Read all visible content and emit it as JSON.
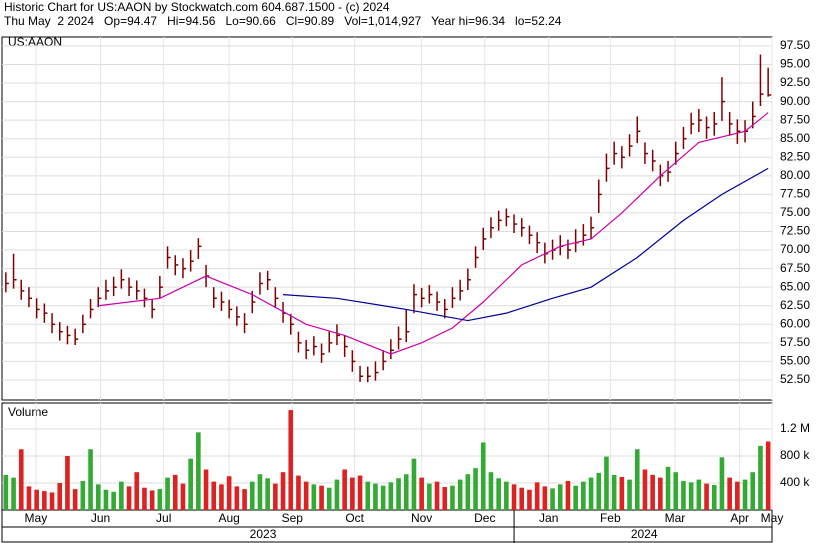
{
  "chart_data": {
    "type": "hlc",
    "title": "Historic Chart for US:AAON by Stockwatch.com 604.687.1500 - (c) 2024",
    "subtitle": "Thu May  2 2024   Op=94.47   Hi=94.56   Lo=90.66   Cl=90.89   Vol=1,014,927   Year hi=96.34   lo=52.24",
    "symbol": "US:AAON",
    "volume_label": "Volume",
    "bar_color": "#800000",
    "up_color": "#33aa33",
    "down_color": "#dd2222",
    "grid": true,
    "xlim": [
      -0.5,
      99.5
    ],
    "xticks": [
      {
        "value": 3.9,
        "label": "May"
      },
      {
        "value": 12.3,
        "label": "Jun"
      },
      {
        "value": 20.5,
        "label": "Jul"
      },
      {
        "value": 29,
        "label": "Aug"
      },
      {
        "value": 37.2,
        "label": "Sep"
      },
      {
        "value": 45.3,
        "label": "Oct"
      },
      {
        "value": 54,
        "label": "Nov"
      },
      {
        "value": 62.2,
        "label": "Dec"
      },
      {
        "value": 70.5,
        "label": "Jan"
      },
      {
        "value": 78.5,
        "label": "Feb"
      },
      {
        "value": 86.9,
        "label": "Mar"
      },
      {
        "value": 95.3,
        "label": "Apr"
      },
      {
        "value": 99.5,
        "label": "May"
      }
    ],
    "years": [
      {
        "value": 33.4,
        "label": "2023"
      },
      {
        "value": 82.9,
        "label": "2024"
      }
    ],
    "year_divider": 66,
    "ylim": [
      49.8,
      98.7
    ],
    "yticks": [
      {
        "value": 52.5,
        "label": "52.50"
      },
      {
        "value": 55,
        "label": "55.00"
      },
      {
        "value": 57.5,
        "label": "57.50"
      },
      {
        "value": 60,
        "label": "60.00"
      },
      {
        "value": 62.5,
        "label": "62.50"
      },
      {
        "value": 65,
        "label": "65.00"
      },
      {
        "value": 67.5,
        "label": "67.50"
      },
      {
        "value": 70,
        "label": "70.00"
      },
      {
        "value": 72.5,
        "label": "72.50"
      },
      {
        "value": 75,
        "label": "75.00"
      },
      {
        "value": 77.5,
        "label": "77.50"
      },
      {
        "value": 80,
        "label": "80.00"
      },
      {
        "value": 82.5,
        "label": "82.50"
      },
      {
        "value": 85,
        "label": "85.00"
      },
      {
        "value": 87.5,
        "label": "87.50"
      },
      {
        "value": 90,
        "label": "90.00"
      },
      {
        "value": 92.5,
        "label": "92.50"
      },
      {
        "value": 95,
        "label": "95.00"
      },
      {
        "value": 97.5,
        "label": "97.50"
      }
    ],
    "close": [
      65.5,
      66,
      64.5,
      63.5,
      62,
      61.5,
      60,
      59,
      58.5,
      58,
      60,
      62,
      63.5,
      64.5,
      65,
      66,
      65,
      64.5,
      63.5,
      62,
      65,
      69,
      68,
      67.5,
      68.5,
      70.5,
      66.5,
      63.5,
      63,
      62,
      61,
      60,
      63,
      65.5,
      66,
      63.5,
      61.5,
      60,
      57.5,
      56.5,
      57,
      56,
      57.5,
      58.5,
      57,
      55,
      53,
      53,
      53.5,
      55,
      56.5,
      58,
      59,
      64,
      63.5,
      64,
      63,
      62,
      63.5,
      64.5,
      66,
      69,
      71.5,
      73,
      74,
      74.5,
      73.5,
      73,
      72,
      71,
      69.5,
      70,
      70.5,
      70,
      71,
      72,
      73,
      77.5,
      81,
      83,
      82.5,
      84,
      86,
      83,
      82,
      80,
      80.5,
      83,
      85,
      87,
      87.5,
      86.5,
      87,
      90,
      87,
      86,
      86,
      88,
      91,
      90.89
    ],
    "high": [
      67,
      69.5,
      66,
      65,
      63.5,
      62.8,
      61.5,
      60.3,
      59.8,
      59.4,
      61.3,
      63.4,
      65,
      66,
      66.4,
      67.4,
      66.3,
      65.9,
      64.8,
      63.4,
      66.5,
      70.5,
      69.3,
      68.9,
      70,
      71.6,
      68,
      65,
      64.4,
      63.3,
      62.4,
      61.5,
      64.5,
      67,
      67.2,
      65,
      63,
      61.4,
      59,
      57.9,
      58.4,
      57.4,
      59,
      60,
      58.5,
      56.5,
      54.4,
      54.3,
      55,
      56.5,
      58,
      59.7,
      62,
      65.4,
      64.9,
      65.3,
      64.4,
      63.4,
      65,
      66,
      67.5,
      70.5,
      73,
      74.4,
      75.3,
      75.6,
      74.8,
      74.3,
      73.3,
      72.4,
      71,
      71.4,
      72,
      71.4,
      72.8,
      73.5,
      74.5,
      79.5,
      83,
      84.6,
      84,
      85.6,
      88,
      84.5,
      83.5,
      81.5,
      82,
      84.6,
      86.6,
      88.5,
      89,
      88,
      88.6,
      93.3,
      88.6,
      87.6,
      87.5,
      90,
      96.34,
      94.56
    ],
    "low": [
      64.3,
      64.8,
      63.3,
      62.3,
      60.8,
      60.2,
      58.8,
      57.8,
      57.3,
      57.2,
      58.8,
      60.8,
      62.3,
      63.3,
      63.8,
      64.8,
      63.8,
      63.3,
      62.3,
      60.8,
      63.5,
      67.5,
      66.6,
      66.2,
      67.1,
      68.8,
      65,
      62.2,
      61.8,
      60.8,
      59.8,
      58.8,
      61.5,
      64,
      64.6,
      62.2,
      60.2,
      58.6,
      56.2,
      55.3,
      55.8,
      54.8,
      56.2,
      57.2,
      55.6,
      53.6,
      52.24,
      52.2,
      52.4,
      53.8,
      55.3,
      56.6,
      57.6,
      61.5,
      62.3,
      62.8,
      61.8,
      60.8,
      62.2,
      63.2,
      64.6,
      67.6,
      70,
      71.6,
      72.6,
      73.2,
      72.3,
      71.8,
      70.8,
      69.6,
      68.2,
      68.7,
      69.3,
      68.8,
      69.7,
      70.6,
      71.5,
      75,
      79.2,
      81.5,
      81,
      82.6,
      84.4,
      81.6,
      80.6,
      78.6,
      79.2,
      81.5,
      83.6,
      85.6,
      85.9,
      85,
      85.4,
      87.4,
      85.4,
      84.3,
      84.5,
      86.4,
      89.4,
      90.66
    ],
    "volume": [
      520000,
      480000,
      900000,
      350000,
      300000,
      280000,
      260000,
      400000,
      800000,
      310000,
      430000,
      900000,
      380000,
      300000,
      270000,
      420000,
      350000,
      560000,
      330000,
      290000,
      310000,
      480000,
      520000,
      390000,
      760000,
      1150000,
      600000,
      420000,
      380000,
      500000,
      350000,
      310000,
      420000,
      530000,
      470000,
      390000,
      560000,
      1480000,
      510000,
      420000,
      380000,
      360000,
      330000,
      450000,
      600000,
      480000,
      510000,
      420000,
      390000,
      360000,
      410000,
      470000,
      530000,
      760000,
      480000,
      390000,
      420000,
      340000,
      360000,
      450000,
      530000,
      620000,
      1000000,
      560000,
      470000,
      420000,
      380000,
      330000,
      300000,
      410000,
      350000,
      320000,
      380000,
      430000,
      360000,
      420000,
      480000,
      550000,
      790000,
      520000,
      490000,
      450000,
      900000,
      600000,
      520000,
      480000,
      640000,
      560000,
      430000,
      410000,
      450000,
      390000,
      370000,
      780000,
      480000,
      420000,
      450000,
      560000,
      950000,
      1014927
    ],
    "y2lim": [
      0,
      1585000
    ],
    "y2ticks": [
      {
        "value": 400000,
        "label": "400 k"
      },
      {
        "value": 800000,
        "label": "800 k"
      },
      {
        "value": 1200000,
        "label": "1.2 M"
      }
    ],
    "series": [
      {
        "color": "#cc00aa",
        "x": [
          12,
          20,
          26,
          32,
          39,
          44,
          50,
          54,
          58,
          62,
          67,
          72,
          76,
          80,
          85,
          90,
          96,
          99
        ],
        "values": [
          62.5,
          63.5,
          66.5,
          64,
          60,
          58.5,
          56,
          57.5,
          59.5,
          63,
          68,
          70.5,
          71.5,
          75,
          80,
          84.5,
          86,
          88.5
        ]
      },
      {
        "color": "#000099",
        "x": [
          36,
          43,
          52,
          60,
          65,
          71,
          76,
          82,
          88,
          93,
          99
        ],
        "values": [
          64,
          63.5,
          62,
          60.5,
          61.5,
          63.5,
          65,
          69,
          74,
          77.5,
          81
        ]
      }
    ]
  }
}
